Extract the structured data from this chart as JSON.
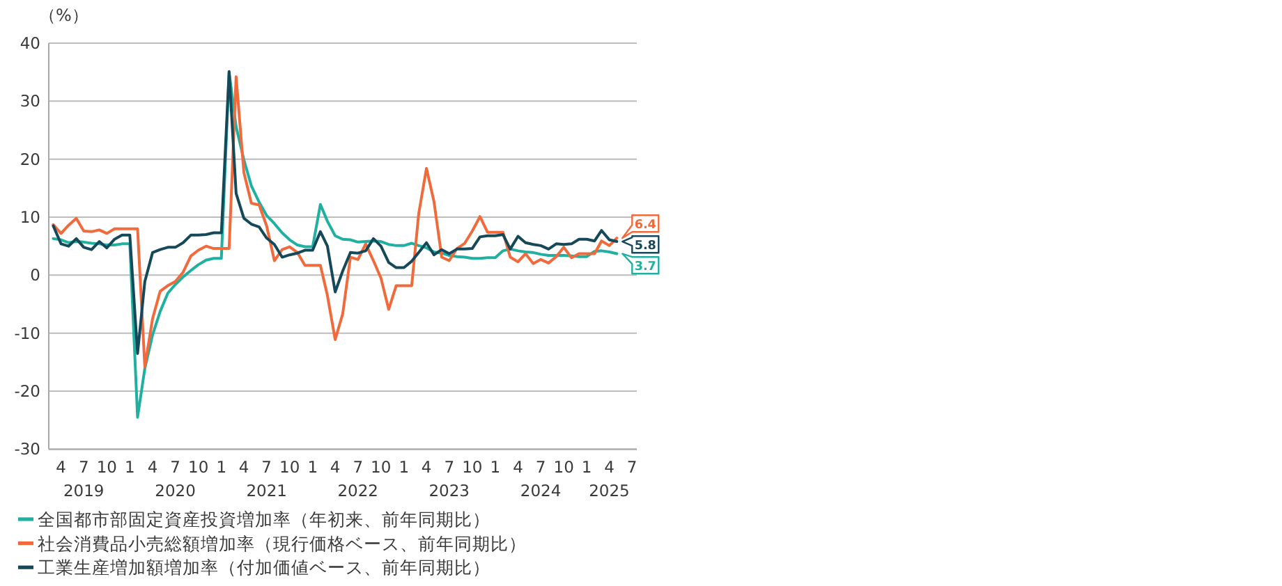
{
  "chart_data": {
    "type": "line",
    "ylabel": "（%）",
    "x": [
      "2019-03",
      "2019-04",
      "2019-05",
      "2019-06",
      "2019-07",
      "2019-08",
      "2019-09",
      "2019-10",
      "2019-11",
      "2019-12",
      "2020-01",
      "2020-02",
      "2020-03",
      "2020-04",
      "2020-05",
      "2020-06",
      "2020-07",
      "2020-08",
      "2020-09",
      "2020-10",
      "2020-11",
      "2020-12",
      "2021-01",
      "2021-02",
      "2021-03",
      "2021-04",
      "2021-05",
      "2021-06",
      "2021-07",
      "2021-08",
      "2021-09",
      "2021-10",
      "2021-11",
      "2021-12",
      "2022-01",
      "2022-02",
      "2022-03",
      "2022-04",
      "2022-05",
      "2022-06",
      "2022-07",
      "2022-08",
      "2022-09",
      "2022-10",
      "2022-11",
      "2022-12",
      "2023-01",
      "2023-02",
      "2023-03",
      "2023-04",
      "2023-05",
      "2023-06",
      "2023-07",
      "2023-08",
      "2023-09",
      "2023-10",
      "2023-11",
      "2023-12",
      "2024-01",
      "2024-02",
      "2024-03",
      "2024-04",
      "2024-05",
      "2024-06",
      "2024-07",
      "2024-08",
      "2024-09",
      "2024-10",
      "2024-11",
      "2024-12",
      "2025-01",
      "2025-02",
      "2025-03",
      "2025-04",
      "2025-05"
    ],
    "series": [
      {
        "name": "全国都市部固定資産投資増加率（年初来、前年同期比）",
        "color": "#1fb0a2",
        "values": [
          6.3,
          6.1,
          5.6,
          5.8,
          5.7,
          5.5,
          5.4,
          5.2,
          5.2,
          5.4,
          5.4,
          -24.5,
          -16.1,
          -10.3,
          -6.3,
          -3.1,
          -1.6,
          -0.3,
          0.8,
          1.8,
          2.6,
          2.9,
          2.9,
          35.0,
          25.6,
          19.9,
          15.4,
          12.6,
          10.3,
          8.9,
          7.3,
          6.1,
          5.2,
          4.9,
          4.9,
          12.2,
          9.3,
          6.8,
          6.2,
          6.1,
          5.7,
          5.8,
          5.9,
          5.8,
          5.3,
          5.1,
          5.1,
          5.5,
          5.1,
          4.7,
          4.0,
          3.8,
          3.4,
          3.2,
          3.1,
          2.9,
          2.9,
          3.0,
          3.0,
          4.2,
          4.5,
          4.2,
          4.0,
          3.9,
          3.6,
          3.4,
          3.4,
          3.4,
          3.3,
          3.2,
          3.2,
          4.1,
          4.2,
          4.0,
          3.7
        ],
        "value_labels": [
          null,
          null,
          null,
          null,
          null,
          null,
          null,
          null,
          null,
          null,
          null,
          null,
          null,
          null,
          null,
          null,
          null,
          null,
          null,
          null,
          null,
          null,
          null,
          null,
          null,
          null,
          null,
          null,
          null,
          null,
          null,
          null,
          null,
          null,
          null,
          null,
          null,
          null,
          null,
          null,
          null,
          null,
          null,
          null,
          null,
          null,
          null,
          null,
          null,
          null,
          null,
          null,
          null,
          null,
          null,
          null,
          null,
          null,
          null,
          null,
          null,
          null,
          null,
          null,
          null,
          null,
          null,
          null,
          null,
          null,
          null,
          null,
          null,
          null,
          "3.7"
        ]
      },
      {
        "name": "社会消費品小売総額増加率（現行価格ベース、前年同期比）",
        "color": "#f06a3c",
        "values": [
          8.7,
          7.2,
          8.6,
          9.8,
          7.6,
          7.5,
          7.8,
          7.2,
          8.0,
          8.0,
          8.0,
          8.0,
          -15.8,
          -7.5,
          -2.8,
          -1.8,
          -1.1,
          0.5,
          3.3,
          4.3,
          5.0,
          4.6,
          4.6,
          4.6,
          34.2,
          17.7,
          12.4,
          12.1,
          8.5,
          2.5,
          4.4,
          4.9,
          3.9,
          1.7,
          1.7,
          1.7,
          -3.5,
          -11.1,
          -6.7,
          3.1,
          2.7,
          5.4,
          2.5,
          -0.5,
          -5.9,
          -1.8,
          -1.8,
          -1.8,
          10.6,
          18.4,
          12.7,
          3.1,
          2.5,
          4.6,
          5.5,
          7.6,
          10.1,
          7.4,
          7.4,
          7.4,
          3.1,
          2.3,
          3.7,
          2.0,
          2.7,
          2.1,
          3.2,
          4.8,
          3.0,
          3.7,
          3.7,
          3.7,
          5.9,
          5.1,
          6.4
        ],
        "value_labels": [
          null,
          null,
          null,
          null,
          null,
          null,
          null,
          null,
          null,
          null,
          null,
          null,
          null,
          null,
          null,
          null,
          null,
          null,
          null,
          null,
          null,
          null,
          null,
          null,
          null,
          null,
          null,
          null,
          null,
          null,
          null,
          null,
          null,
          null,
          null,
          null,
          null,
          null,
          null,
          null,
          null,
          null,
          null,
          null,
          null,
          null,
          null,
          null,
          null,
          null,
          null,
          null,
          null,
          null,
          null,
          null,
          null,
          null,
          null,
          null,
          null,
          null,
          null,
          null,
          null,
          null,
          null,
          null,
          null,
          null,
          null,
          null,
          null,
          null,
          "6.4"
        ]
      },
      {
        "name": "工業生産増加額増加率（付加価値ベース、前年同期比）",
        "color": "#15495a",
        "values": [
          8.5,
          5.4,
          5.0,
          6.3,
          4.8,
          4.4,
          5.8,
          4.7,
          6.2,
          6.9,
          6.9,
          -13.5,
          -1.1,
          3.9,
          4.4,
          4.8,
          4.8,
          5.6,
          6.9,
          6.9,
          7.0,
          7.3,
          7.3,
          35.1,
          14.1,
          9.8,
          8.8,
          8.3,
          6.4,
          5.3,
          3.1,
          3.5,
          3.8,
          4.3,
          4.3,
          7.5,
          5.0,
          -2.9,
          0.7,
          3.9,
          3.8,
          4.2,
          6.3,
          5.0,
          2.2,
          1.3,
          1.3,
          2.4,
          3.9,
          5.6,
          3.5,
          4.4,
          3.7,
          4.5,
          4.5,
          4.6,
          6.6,
          6.8,
          6.8,
          7.0,
          4.5,
          6.7,
          5.6,
          5.3,
          5.1,
          4.5,
          5.4,
          5.3,
          5.4,
          6.2,
          6.2,
          5.9,
          7.7,
          6.1,
          5.8
        ],
        "value_labels": [
          null,
          null,
          null,
          null,
          null,
          null,
          null,
          null,
          null,
          null,
          null,
          null,
          null,
          null,
          null,
          null,
          null,
          null,
          null,
          null,
          null,
          null,
          null,
          null,
          null,
          null,
          null,
          null,
          null,
          null,
          null,
          null,
          null,
          null,
          null,
          null,
          null,
          null,
          null,
          null,
          null,
          null,
          null,
          null,
          null,
          null,
          null,
          null,
          null,
          null,
          null,
          null,
          null,
          null,
          null,
          null,
          null,
          null,
          null,
          null,
          null,
          null,
          null,
          null,
          null,
          null,
          null,
          null,
          null,
          null,
          null,
          null,
          null,
          null,
          "5.8"
        ]
      }
    ],
    "xlim": [
      "2019-02-11",
      "2025-07-20"
    ],
    "xticks": [
      {
        "value": "2019-04",
        "label": "4"
      },
      {
        "value": "2019-07",
        "label": "7\n2019"
      },
      {
        "value": "2019-10",
        "label": "10"
      },
      {
        "value": "2020-01",
        "label": "1"
      },
      {
        "value": "2020-04",
        "label": "4"
      },
      {
        "value": "2020-07",
        "label": "7\n2020"
      },
      {
        "value": "2020-10",
        "label": "10"
      },
      {
        "value": "2021-01",
        "label": "1"
      },
      {
        "value": "2021-04",
        "label": "4"
      },
      {
        "value": "2021-07",
        "label": "7\n2021"
      },
      {
        "value": "2021-10",
        "label": "10"
      },
      {
        "value": "2022-01",
        "label": "1"
      },
      {
        "value": "2022-04",
        "label": "4"
      },
      {
        "value": "2022-07",
        "label": "7\n2022"
      },
      {
        "value": "2022-10",
        "label": "10"
      },
      {
        "value": "2023-01",
        "label": "1"
      },
      {
        "value": "2023-04",
        "label": "4"
      },
      {
        "value": "2023-07",
        "label": "7\n2023"
      },
      {
        "value": "2023-10",
        "label": "10"
      },
      {
        "value": "2024-01",
        "label": "1"
      },
      {
        "value": "2024-04",
        "label": "4"
      },
      {
        "value": "2024-07",
        "label": "7\n2024"
      },
      {
        "value": "2024-10",
        "label": "10"
      },
      {
        "value": "2025-01",
        "label": "1"
      },
      {
        "value": "2025-04",
        "label": "4\n2025"
      },
      {
        "value": "2025-07",
        "label": "7"
      }
    ],
    "ylim": [
      -30,
      40
    ],
    "yticks": [
      -30,
      -20,
      -10,
      0,
      10,
      20,
      30,
      40
    ],
    "grid": "y",
    "legend": "bottom"
  }
}
